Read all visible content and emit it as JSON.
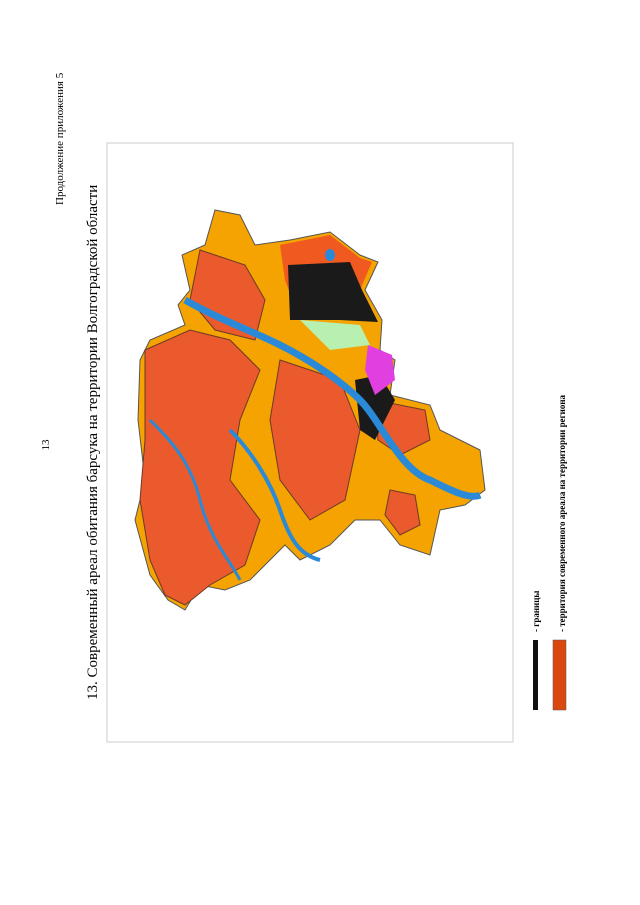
{
  "header": {
    "continuation": "Продолжение приложения 5",
    "page_number": "13"
  },
  "figure": {
    "title": "13. Современный ареал обитания барсука на территории Волгоградской области"
  },
  "legend": {
    "items": [
      {
        "label": "- границы"
      },
      {
        "label": "- территория современного ареала на территории региона"
      }
    ]
  }
}
